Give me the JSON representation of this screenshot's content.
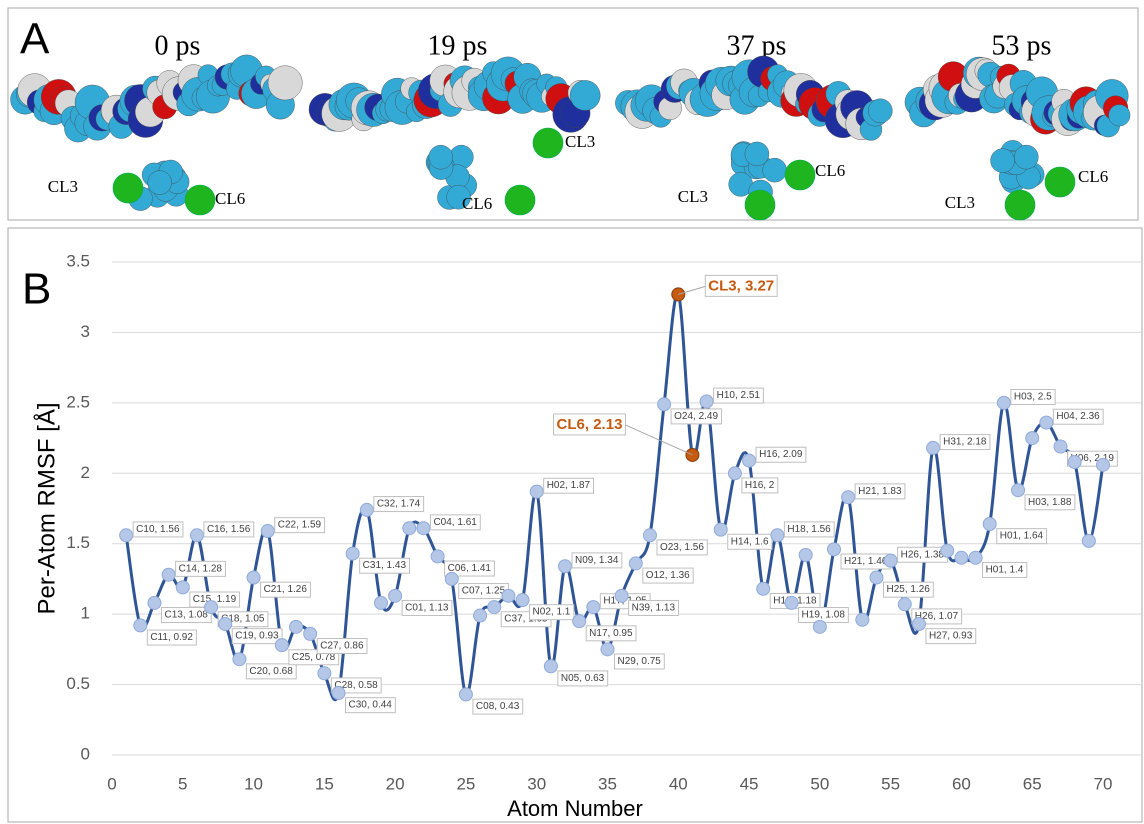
{
  "panel_a": {
    "label": "A",
    "frames": [
      {
        "time": "0 ps",
        "atom_labels": [
          "CL3",
          "CL6"
        ]
      },
      {
        "time": "19 ps",
        "atom_labels": [
          "CL3",
          "CL6"
        ]
      },
      {
        "time": "37 ps",
        "atom_labels": [
          "CL6",
          "CL3"
        ]
      },
      {
        "time": "53 ps",
        "atom_labels": [
          "CL6",
          "CL3"
        ]
      }
    ]
  },
  "chart_data": {
    "type": "line",
    "panel_label": "B",
    "x_label": "Atom Number",
    "y_label": "Per-Atom RMSF [Å]",
    "x": [
      1,
      2,
      3,
      4,
      5,
      6,
      7,
      8,
      9,
      10,
      11,
      12,
      13,
      14,
      15,
      16,
      17,
      18,
      19,
      20,
      21,
      22,
      23,
      24,
      25,
      26,
      27,
      28,
      29,
      30,
      31,
      32,
      33,
      34,
      35,
      36,
      37,
      38,
      39,
      40,
      41,
      42,
      43,
      44,
      45,
      46,
      47,
      48,
      49,
      50,
      51,
      52,
      53,
      54,
      55,
      56,
      57,
      58,
      59,
      60,
      61,
      62,
      63,
      64,
      65,
      66,
      67,
      68,
      69,
      70
    ],
    "series": [
      {
        "color": "#2f5597",
        "marker_colors": [
          "#b4c7e7",
          "#b4c7e7",
          "#b4c7e7",
          "#b4c7e7",
          "#b4c7e7",
          "#b4c7e7",
          "#b4c7e7",
          "#b4c7e7",
          "#b4c7e7",
          "#b4c7e7",
          "#b4c7e7",
          "#b4c7e7",
          "#b4c7e7",
          "#b4c7e7",
          "#b4c7e7",
          "#b4c7e7",
          "#b4c7e7",
          "#b4c7e7",
          "#b4c7e7",
          "#b4c7e7",
          "#b4c7e7",
          "#b4c7e7",
          "#b4c7e7",
          "#b4c7e7",
          "#b4c7e7",
          "#b4c7e7",
          "#b4c7e7",
          "#b4c7e7",
          "#b4c7e7",
          "#b4c7e7",
          "#b4c7e7",
          "#b4c7e7",
          "#b4c7e7",
          "#b4c7e7",
          "#b4c7e7",
          "#b4c7e7",
          "#b4c7e7",
          "#b4c7e7",
          "#b4c7e7",
          "#c55a11",
          "#c55a11",
          "#b4c7e7",
          "#b4c7e7",
          "#b4c7e7",
          "#b4c7e7",
          "#b4c7e7",
          "#b4c7e7",
          "#b4c7e7",
          "#b4c7e7",
          "#b4c7e7",
          "#b4c7e7",
          "#b4c7e7",
          "#b4c7e7",
          "#b4c7e7",
          "#b4c7e7",
          "#b4c7e7",
          "#b4c7e7",
          "#b4c7e7",
          "#b4c7e7",
          "#b4c7e7",
          "#b4c7e7",
          "#b4c7e7",
          "#b4c7e7",
          "#b4c7e7",
          "#b4c7e7",
          "#b4c7e7",
          "#b4c7e7",
          "#b4c7e7",
          "#b4c7e7",
          "#b4c7e7"
        ],
        "values": [
          1.56,
          0.92,
          1.08,
          1.28,
          1.19,
          1.56,
          1.05,
          0.93,
          0.68,
          1.26,
          1.59,
          0.78,
          0.91,
          0.86,
          0.58,
          0.44,
          1.43,
          1.74,
          1.08,
          1.13,
          1.61,
          1.61,
          1.41,
          1.25,
          0.43,
          0.99,
          1.05,
          1.13,
          1.1,
          1.87,
          0.63,
          1.34,
          0.95,
          1.05,
          0.75,
          1.13,
          1.36,
          1.56,
          2.49,
          3.27,
          2.13,
          2.51,
          1.6,
          2,
          2.09,
          1.18,
          1.56,
          1.08,
          1.42,
          0.91,
          1.46,
          1.83,
          0.96,
          1.26,
          1.38,
          1.07,
          0.93,
          2.18,
          1.45,
          1.4,
          1.4,
          1.64,
          2.5,
          1.88,
          2.25,
          2.36,
          2.19,
          2.08,
          1.52,
          2.06
        ],
        "value_labels": [
          "C10, 1.56",
          "C11, 0.92",
          "C13, 1.08",
          "C14, 1.28",
          "C15, 1.19",
          "C16, 1.56",
          "C18, 1.05",
          "C19, 0.93",
          "C20, 0.68",
          "C21, 1.26",
          "C22, 1.59",
          "C25, 0.78",
          null,
          "C27, 0.86",
          "C28, 0.58",
          "C30, 0.44",
          "C31, 1.43",
          "C32, 1.74",
          null,
          "C01, 1.13",
          null,
          "C04, 1.61",
          "C06, 1.41",
          "C07, 1.25",
          "C08, 0.43",
          null,
          "C37, 1.05",
          null,
          "N02, 1.1",
          "H02, 1.87",
          "N05, 0.63",
          "N09, 1.34",
          "N17, 0.95",
          "H17, 1.05",
          "N29, 0.75",
          "N39, 1.13",
          "O12, 1.36",
          "O23, 1.56",
          "O24, 2.49",
          "CL3, 3.27",
          "CL6, 2.13",
          "H10, 2.51",
          "H14, 1.6",
          "H16, 2",
          "H16, 2.09",
          "H18, 1.18",
          "H18, 1.56",
          "H19, 1.08",
          null,
          null,
          "H21, 1.46",
          "H21, 1.83",
          null,
          "H25, 1.26",
          "H26, 1.38",
          "H26, 1.07",
          "H27, 0.93",
          "H31, 2.18",
          null,
          null,
          "H01, 1.4",
          "H01, 1.64",
          "H03, 2.5",
          "H03, 1.88",
          null,
          "H04, 2.36",
          "H06, 2.19",
          null,
          null,
          null
        ]
      }
    ],
    "xlim": [
      0,
      73
    ],
    "xticks": [
      0,
      5,
      10,
      15,
      20,
      25,
      30,
      35,
      40,
      45,
      50,
      55,
      60,
      65,
      70
    ],
    "ylim": [
      0,
      3.5
    ],
    "yticks": [
      0,
      0.5,
      1,
      1.5,
      2,
      2.5,
      3,
      3.5
    ],
    "grid": true
  }
}
